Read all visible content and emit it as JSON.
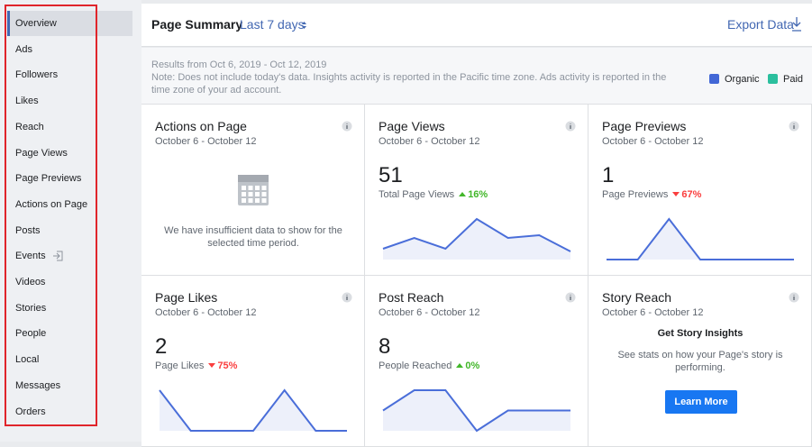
{
  "sidebar": {
    "items": [
      "Overview",
      "Ads",
      "Followers",
      "Likes",
      "Reach",
      "Page Views",
      "Page Previews",
      "Actions on Page",
      "Posts",
      "Events",
      "Videos",
      "Stories",
      "People",
      "Local",
      "Messages",
      "Orders"
    ],
    "selected": 0
  },
  "header": {
    "title": "Page Summary",
    "range": "Last 7 days",
    "export": "Export Data"
  },
  "note": {
    "results": "Results from Oct 6, 2019 - Oct 12, 2019",
    "text": "Note: Does not include today's data. Insights activity is reported in the Pacific time zone. Ads activity is reported in the time zone of your ad account."
  },
  "legend": [
    {
      "name": "Organic",
      "color": "#4267d6"
    },
    {
      "name": "Paid",
      "color": "#2bbf9e"
    }
  ],
  "cards": [
    {
      "title": "Actions on Page",
      "dates": "October 6 - October 12",
      "message": "We have insufficient data to show for the selected time period."
    },
    {
      "title": "Page Views",
      "dates": "October 6 - October 12",
      "value": 51,
      "label": "Total Page Views",
      "change": "16%",
      "direction": "up",
      "sparkline": [
        4,
        8,
        4,
        15,
        8,
        9,
        3
      ]
    },
    {
      "title": "Page Previews",
      "dates": "October 6 - October 12",
      "value": 1,
      "label": "Page Previews",
      "change": "67%",
      "direction": "down",
      "sparkline": [
        0,
        0,
        1,
        0,
        0,
        0,
        0
      ]
    },
    {
      "title": "Page Likes",
      "dates": "October 6 - October 12",
      "value": 2,
      "label": "Page Likes",
      "change": "75%",
      "direction": "down",
      "sparkline": [
        1,
        0,
        0,
        0,
        1,
        0,
        0
      ]
    },
    {
      "title": "Post Reach",
      "dates": "October 6 - October 12",
      "value": 8,
      "label": "People Reached",
      "change": "0%",
      "direction": "up",
      "sparkline": [
        1,
        2,
        2,
        0,
        1,
        1,
        1
      ]
    },
    {
      "title": "Story Reach",
      "dates": "October 6 - October 12",
      "heading": "Get Story Insights",
      "text": "See stats on how your Page's story is performing.",
      "button": "Learn More"
    }
  ]
}
